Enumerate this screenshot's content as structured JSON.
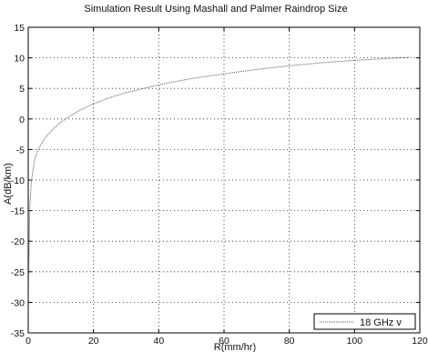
{
  "chart_data": {
    "type": "line",
    "title": "Simulation Result Using Mashall and Palmer Raindrop Size",
    "xlabel": "R(mm/hr)",
    "ylabel": "A(dB/km)",
    "xlim": [
      0,
      120
    ],
    "ylim": [
      -35,
      15
    ],
    "xticks": [
      0,
      20,
      40,
      60,
      80,
      100,
      120
    ],
    "yticks": [
      15,
      10,
      5,
      0,
      -5,
      -10,
      -15,
      -20,
      -25,
      -30,
      -35
    ],
    "grid": true,
    "legend_position": "bottom-right",
    "series": [
      {
        "name": "18 GHz v",
        "color": "#555555",
        "x": [
          0.1,
          0.5,
          1,
          2,
          3,
          5,
          7,
          10,
          15,
          20,
          25,
          30,
          40,
          50,
          60,
          70,
          80,
          90,
          100,
          110,
          117
        ],
        "y": [
          -27,
          -14,
          -10,
          -6.5,
          -5,
          -3.2,
          -2,
          -0.5,
          1.2,
          2.5,
          3.5,
          4.3,
          5.6,
          6.6,
          7.4,
          8.1,
          8.7,
          9.2,
          9.6,
          9.9,
          10.1
        ]
      }
    ]
  }
}
